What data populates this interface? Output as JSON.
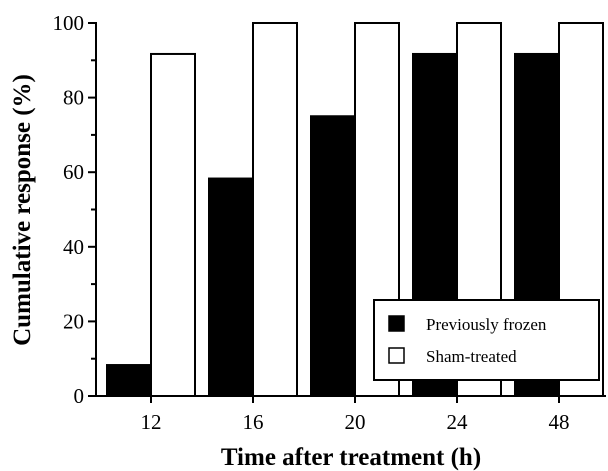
{
  "chart_data": {
    "type": "bar",
    "categories": [
      "12",
      "16",
      "20",
      "24",
      "48"
    ],
    "series": [
      {
        "name": "Previously frozen",
        "values": [
          8.3,
          58.3,
          75,
          91.7,
          91.7
        ],
        "fill": "#000000"
      },
      {
        "name": "Sham-treated",
        "values": [
          91.7,
          100,
          100,
          100,
          100
        ],
        "fill": "#ffffff"
      }
    ],
    "xlabel": "Time after treatment (h)",
    "ylabel": "Cumulative response (%)",
    "ylim": [
      0,
      100
    ],
    "yticks": [
      0,
      20,
      40,
      60,
      80,
      100
    ],
    "grid": false,
    "legend_position": "bottom-right"
  }
}
